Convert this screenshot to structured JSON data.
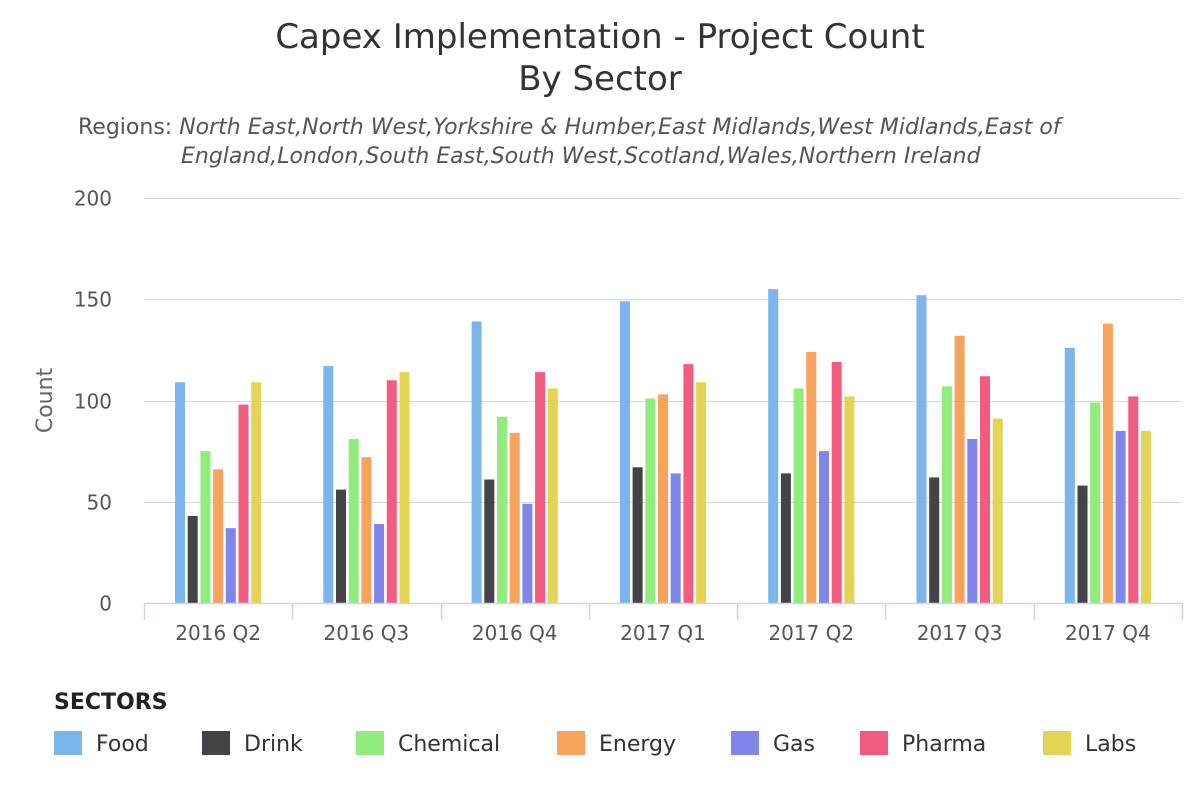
{
  "chart_data": {
    "type": "bar",
    "title_line1": "Capex Implementation - Project Count",
    "title_line2": "By Sector",
    "subtitle_label": "Regions:",
    "subtitle_line1": "North East,North West,Yorkshire & Humber,East Midlands,West Midlands,East of",
    "subtitle_line2": "England,London,South East,South West,Scotland,Wales,Northern Ireland",
    "ylabel": "Count",
    "xlabel": "",
    "ylim": [
      0,
      200
    ],
    "yticks": [
      0,
      50,
      100,
      150,
      200
    ],
    "grid": true,
    "legend_title": "SECTORS",
    "legend_position": "bottom-left",
    "categories": [
      "2016 Q2",
      "2016 Q3",
      "2016 Q4",
      "2017 Q1",
      "2017 Q2",
      "2017 Q3",
      "2017 Q4"
    ],
    "series": [
      {
        "name": "Food",
        "color": "#7cb5ec",
        "values": [
          109,
          117,
          139,
          149,
          155,
          152,
          126
        ]
      },
      {
        "name": "Drink",
        "color": "#434348",
        "values": [
          43,
          56,
          61,
          67,
          64,
          62,
          58
        ]
      },
      {
        "name": "Chemical",
        "color": "#90ed7d",
        "values": [
          75,
          81,
          92,
          101,
          106,
          107,
          99
        ]
      },
      {
        "name": "Energy",
        "color": "#f7a35c",
        "values": [
          66,
          72,
          84,
          103,
          124,
          132,
          138
        ]
      },
      {
        "name": "Gas",
        "color": "#8085e9",
        "values": [
          37,
          39,
          49,
          64,
          75,
          81,
          85
        ]
      },
      {
        "name": "Pharma",
        "color": "#f15c80",
        "values": [
          98,
          110,
          114,
          118,
          119,
          112,
          102
        ]
      },
      {
        "name": "Labs",
        "color": "#e4d354",
        "values": [
          109,
          114,
          106,
          109,
          102,
          91,
          85
        ]
      }
    ]
  }
}
